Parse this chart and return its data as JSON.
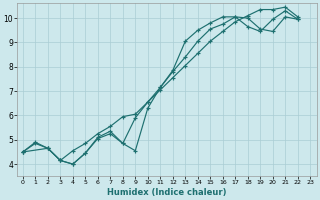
{
  "xlabel": "Humidex (Indice chaleur)",
  "background_color": "#cde8ec",
  "grid_color": "#aacdd4",
  "line_color": "#1e7070",
  "xlim": [
    -0.5,
    23.5
  ],
  "ylim": [
    3.5,
    10.6
  ],
  "xticks": [
    0,
    1,
    2,
    3,
    4,
    5,
    6,
    7,
    8,
    9,
    10,
    11,
    12,
    13,
    14,
    15,
    16,
    17,
    18,
    19,
    20,
    21,
    22,
    23
  ],
  "yticks": [
    4,
    5,
    6,
    7,
    8,
    9,
    10
  ],
  "line1_x": [
    0,
    1,
    2,
    3,
    4,
    5,
    6,
    7,
    8,
    9,
    10,
    11,
    12,
    13,
    14,
    15,
    16,
    17,
    18,
    19,
    20,
    21,
    22
  ],
  "line1_y": [
    4.5,
    4.9,
    4.65,
    4.15,
    4.0,
    4.45,
    5.05,
    5.25,
    4.85,
    4.55,
    6.3,
    7.15,
    7.8,
    8.4,
    9.05,
    9.55,
    9.75,
    10.05,
    10.0,
    9.55,
    9.45,
    10.05,
    9.95
  ],
  "line2_x": [
    0,
    2,
    3,
    4,
    5,
    6,
    7,
    8,
    9,
    10,
    11,
    12,
    13,
    14,
    15,
    16,
    17,
    18,
    19,
    20,
    21,
    22
  ],
  "line2_y": [
    4.5,
    4.65,
    4.15,
    4.55,
    4.85,
    5.25,
    5.55,
    5.95,
    6.05,
    6.55,
    7.05,
    7.55,
    8.05,
    8.55,
    9.05,
    9.45,
    9.85,
    10.1,
    10.35,
    10.35,
    10.45,
    10.05
  ],
  "line3_x": [
    0,
    1,
    2,
    3,
    4,
    5,
    6,
    7,
    8,
    9,
    10,
    11,
    12,
    13,
    14,
    15,
    16,
    17,
    18,
    19,
    20,
    21,
    22
  ],
  "line3_y": [
    4.5,
    4.85,
    4.65,
    4.15,
    4.0,
    4.45,
    5.1,
    5.35,
    4.85,
    5.9,
    6.55,
    7.15,
    7.85,
    9.05,
    9.5,
    9.8,
    10.05,
    10.05,
    9.65,
    9.45,
    9.95,
    10.3,
    9.95
  ]
}
